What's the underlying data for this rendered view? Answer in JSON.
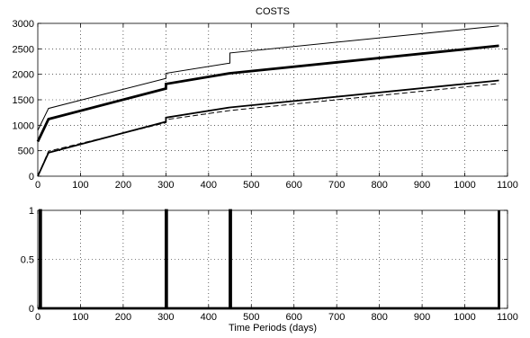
{
  "chart_data": [
    {
      "type": "line",
      "title": "COSTS",
      "xlabel": "",
      "ylabel": "",
      "xlim": [
        0,
        1100
      ],
      "ylim": [
        0,
        3000
      ],
      "x_ticks": [
        0,
        100,
        200,
        300,
        400,
        500,
        600,
        700,
        800,
        900,
        1000,
        1100
      ],
      "y_ticks": [
        0,
        500,
        1000,
        1500,
        2000,
        2500,
        3000
      ],
      "grid": true,
      "series": [
        {
          "style": "thin-solid",
          "points": [
            [
              0,
              900
            ],
            [
              25,
              1330
            ],
            [
              300,
              1920
            ],
            [
              300,
              2020
            ],
            [
              450,
              2220
            ],
            [
              450,
              2420
            ],
            [
              1080,
              2950
            ]
          ]
        },
        {
          "style": "thick-solid",
          "points": [
            [
              0,
              680
            ],
            [
              25,
              1120
            ],
            [
              300,
              1720
            ],
            [
              300,
              1810
            ],
            [
              450,
              2020
            ],
            [
              1080,
              2560
            ]
          ]
        },
        {
          "style": "medium-solid",
          "points": [
            [
              0,
              0
            ],
            [
              25,
              460
            ],
            [
              300,
              1070
            ],
            [
              300,
              1150
            ],
            [
              450,
              1350
            ],
            [
              1080,
              1880
            ]
          ]
        },
        {
          "style": "dashed",
          "points": [
            [
              0,
              0
            ],
            [
              25,
              490
            ],
            [
              300,
              1050
            ],
            [
              300,
              1110
            ],
            [
              450,
              1290
            ],
            [
              1080,
              1820
            ]
          ]
        }
      ]
    },
    {
      "type": "line",
      "title": "",
      "xlabel": "Time Periods (days)",
      "ylabel": "",
      "xlim": [
        0,
        1100
      ],
      "ylim": [
        0,
        1
      ],
      "x_ticks": [
        0,
        100,
        200,
        300,
        400,
        500,
        600,
        700,
        800,
        900,
        1000,
        1100
      ],
      "y_ticks": [
        0,
        0.5,
        1
      ],
      "grid": true,
      "series": [
        {
          "style": "thick-solid",
          "points": [
            [
              0,
              0
            ],
            [
              5,
              0
            ],
            [
              5,
              1
            ],
            [
              7,
              1
            ],
            [
              7,
              0
            ],
            [
              300,
              0
            ],
            [
              300,
              1
            ],
            [
              302,
              1
            ],
            [
              302,
              0
            ],
            [
              450,
              0
            ],
            [
              450,
              1
            ],
            [
              452,
              1
            ],
            [
              452,
              0
            ],
            [
              1080,
              0
            ],
            [
              1080,
              1
            ]
          ]
        }
      ]
    }
  ]
}
